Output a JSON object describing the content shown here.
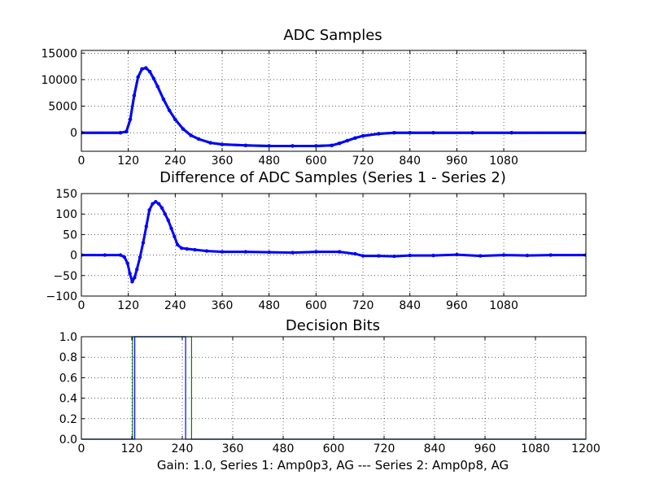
{
  "figure": {
    "footer_caption": "Gain: 1.0, Series 1: Amp0p3, AG --- Series 2: Amp0p8, AG"
  },
  "colors": {
    "series_green": "#007f00",
    "series_blue": "#0000ff",
    "grid": "#000000",
    "background": "#ffffff"
  },
  "chart_data": [
    {
      "type": "line",
      "title": "ADC Samples",
      "xlabel": "",
      "ylabel": "",
      "xlim": [
        0,
        1290
      ],
      "ylim": [
        -3500,
        15500
      ],
      "x_ticks": [
        0,
        120,
        240,
        360,
        480,
        600,
        720,
        840,
        960,
        1080
      ],
      "x_tick_labels": [
        "0",
        "120",
        "240",
        "360",
        "480",
        "600",
        "720",
        "840",
        "960",
        "1080"
      ],
      "y_ticks": [
        0,
        5000,
        10000,
        15000
      ],
      "y_tick_labels": [
        "0",
        "5000",
        "10000",
        "15000"
      ],
      "grid": true,
      "series": [
        {
          "color": "#007f00",
          "marker": true,
          "x": [
            0,
            100,
            115,
            125,
            135,
            145,
            155,
            165,
            175,
            185,
            195,
            210,
            225,
            240,
            260,
            280,
            300,
            330,
            360,
            420,
            480,
            540,
            600,
            640,
            660,
            680,
            700,
            720,
            760,
            800,
            840,
            900,
            1000,
            1100,
            1290
          ],
          "values": [
            0,
            0,
            200,
            2500,
            7000,
            10500,
            12000,
            12200,
            11500,
            10200,
            8700,
            6300,
            4200,
            2500,
            700,
            -500,
            -1200,
            -1900,
            -2200,
            -2400,
            -2500,
            -2500,
            -2500,
            -2400,
            -2000,
            -1500,
            -1000,
            -600,
            -200,
            0,
            0,
            0,
            0,
            0,
            0
          ]
        },
        {
          "color": "#0000ff",
          "marker": true,
          "x": [
            0,
            100,
            115,
            125,
            135,
            145,
            155,
            165,
            175,
            185,
            195,
            210,
            225,
            240,
            260,
            280,
            300,
            330,
            360,
            420,
            480,
            540,
            600,
            640,
            660,
            680,
            700,
            720,
            760,
            800,
            840,
            900,
            1000,
            1100,
            1290
          ],
          "values": [
            0,
            0,
            200,
            2500,
            7000,
            10500,
            12000,
            12200,
            11500,
            10200,
            8700,
            6300,
            4200,
            2500,
            700,
            -500,
            -1200,
            -1900,
            -2200,
            -2400,
            -2500,
            -2500,
            -2500,
            -2400,
            -2000,
            -1500,
            -1000,
            -600,
            -200,
            0,
            0,
            0,
            0,
            0,
            0
          ]
        }
      ]
    },
    {
      "type": "line",
      "title": "Difference of ADC Samples (Series 1 - Series 2)",
      "xlabel": "",
      "ylabel": "",
      "xlim": [
        0,
        1290
      ],
      "ylim": [
        -100,
        150
      ],
      "x_ticks": [
        0,
        120,
        240,
        360,
        480,
        600,
        720,
        840,
        960,
        1080
      ],
      "x_tick_labels": [
        "0",
        "120",
        "240",
        "360",
        "480",
        "600",
        "720",
        "840",
        "960",
        "1080"
      ],
      "y_ticks": [
        -100,
        -50,
        0,
        50,
        100,
        150
      ],
      "y_tick_labels": [
        "−100",
        "−50",
        "0",
        "50",
        "100",
        "150"
      ],
      "grid": true,
      "series": [
        {
          "color": "#0000ff",
          "marker": true,
          "x": [
            0,
            60,
            100,
            110,
            118,
            124,
            130,
            136,
            142,
            150,
            158,
            166,
            174,
            182,
            190,
            198,
            206,
            214,
            222,
            230,
            238,
            246,
            256,
            270,
            290,
            320,
            360,
            420,
            480,
            540,
            600,
            660,
            700,
            720,
            760,
            800,
            840,
            900,
            960,
            1020,
            1080,
            1140,
            1200,
            1290
          ],
          "values": [
            0,
            0,
            0,
            -5,
            -20,
            -45,
            -65,
            -55,
            -35,
            -5,
            30,
            70,
            110,
            125,
            130,
            125,
            115,
            100,
            85,
            65,
            45,
            25,
            17,
            15,
            13,
            10,
            8,
            8,
            7,
            6,
            8,
            8,
            3,
            -2,
            -2,
            -3,
            -1,
            -1,
            1,
            -2,
            0,
            -1,
            0,
            0
          ]
        }
      ]
    },
    {
      "type": "line",
      "title": "Decision Bits",
      "xlabel": "Gain: 1.0, Series 1: Amp0p3, AG --- Series 2: Amp0p8, AG",
      "ylabel": "",
      "xlim": [
        0,
        1200
      ],
      "ylim": [
        0.0,
        1.0
      ],
      "x_ticks": [
        0,
        120,
        240,
        360,
        480,
        600,
        720,
        840,
        960,
        1080,
        1200
      ],
      "x_tick_labels": [
        "0",
        "120",
        "240",
        "360",
        "480",
        "600",
        "720",
        "840",
        "960",
        "1080",
        "1200"
      ],
      "y_ticks": [
        0.0,
        0.2,
        0.4,
        0.6,
        0.8,
        1.0
      ],
      "y_tick_labels": [
        "0.0",
        "0.2",
        "0.4",
        "0.6",
        "0.8",
        "1.0"
      ],
      "grid": true,
      "series": [
        {
          "color": "#007f00",
          "marker": false,
          "x": [
            0,
            122,
            122,
            262,
            262,
            1200
          ],
          "values": [
            0,
            0,
            1,
            1,
            0,
            0
          ]
        },
        {
          "color": "#0000ff",
          "marker": false,
          "x": [
            0,
            127,
            127,
            248,
            248,
            1200
          ],
          "values": [
            0,
            0,
            1,
            1,
            0,
            0
          ]
        }
      ]
    }
  ]
}
